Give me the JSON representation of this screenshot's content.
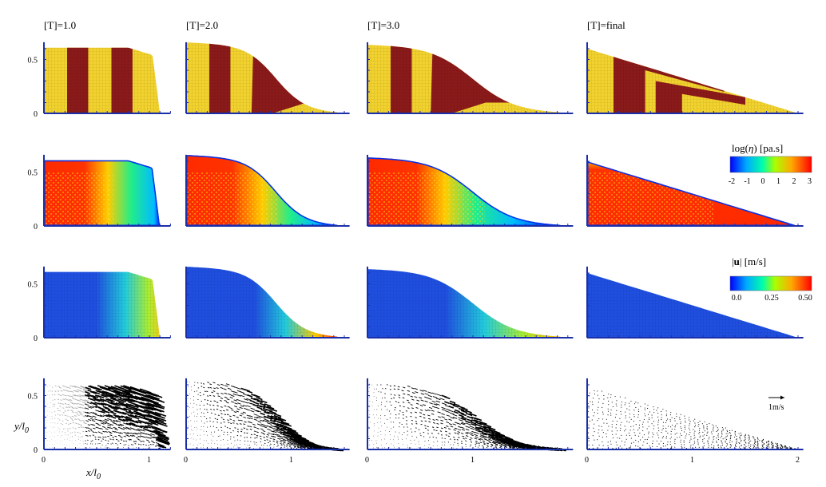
{
  "columns": [
    {
      "title": "[T]=1.0",
      "front": 1.1
    },
    {
      "title": "[T]=2.0",
      "front": 1.45
    },
    {
      "title": "[T]=3.0",
      "front": 1.85
    },
    {
      "title": "[T]=final",
      "front": 2.0
    }
  ],
  "ytick_labels": [
    "0.5",
    "0"
  ],
  "xtick_labels": [
    "0",
    "1",
    "2"
  ],
  "axis_labels": {
    "x": "x/l",
    "x_sub": "0",
    "y": "y/l",
    "y_sub": "0"
  },
  "colorbar_viscosity": {
    "label_prefix": "log(",
    "label_symbol": "η",
    "label_suffix": ") [pa.s]",
    "ticks": [
      "-2",
      "-1",
      "0",
      "1",
      "2",
      "3"
    ]
  },
  "colorbar_velocity": {
    "label_u": "u",
    "label_suffix": "| [m/s]",
    "ticks": [
      "0.0",
      "0.25",
      "0.50"
    ]
  },
  "vector_scale_label": "1m/s",
  "colors": {
    "yellow": "#f2d22e",
    "dark_red": "#8b1a1a",
    "blue": "#1f4fe0",
    "axis": "#1a2fa8"
  }
}
